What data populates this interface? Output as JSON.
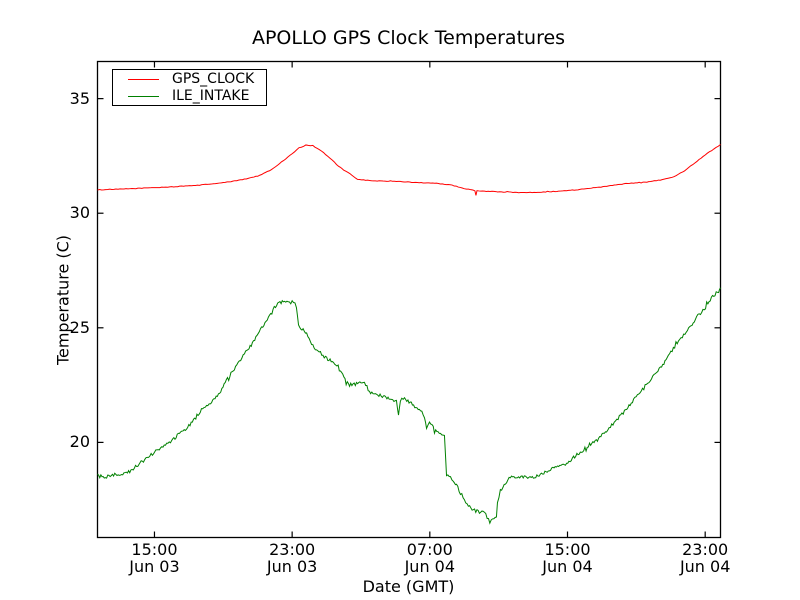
{
  "chart_data": {
    "type": "line",
    "title": "APOLLO GPS Clock Temperatures",
    "xlabel": "Date (GMT)",
    "ylabel": "Temperature (C)",
    "grid": false,
    "legend_position": "upper left",
    "background": "#ffffff",
    "frame_color": "#000000",
    "x_unit": "hours since Jun 03 00:00 GMT",
    "x_range": [
      11.69,
      47.89
    ],
    "y_range": [
      15.85,
      36.62
    ],
    "x_ticks": [
      {
        "hour": 15,
        "time": "15:00",
        "date": "Jun 03"
      },
      {
        "hour": 23,
        "time": "23:00",
        "date": "Jun 03"
      },
      {
        "hour": 31,
        "time": "07:00",
        "date": "Jun 04"
      },
      {
        "hour": 39,
        "time": "15:00",
        "date": "Jun 04"
      },
      {
        "hour": 47,
        "time": "23:00",
        "date": "Jun 04"
      }
    ],
    "y_ticks": [
      {
        "value": 20,
        "label": "20"
      },
      {
        "value": 25,
        "label": "25"
      },
      {
        "value": 30,
        "label": "30"
      },
      {
        "value": 35,
        "label": "35"
      }
    ],
    "series": [
      {
        "name": "GPS_CLOCK",
        "color": "#ff0000",
        "noise": 0.012,
        "points": [
          [
            11.69,
            31.02
          ],
          [
            13.0,
            31.05
          ],
          [
            14.5,
            31.1
          ],
          [
            16.0,
            31.15
          ],
          [
            17.5,
            31.22
          ],
          [
            19.0,
            31.33
          ],
          [
            20.0,
            31.45
          ],
          [
            21.0,
            31.62
          ],
          [
            21.8,
            31.9
          ],
          [
            22.5,
            32.3
          ],
          [
            23.0,
            32.6
          ],
          [
            23.4,
            32.85
          ],
          [
            23.8,
            32.97
          ],
          [
            24.2,
            32.95
          ],
          [
            24.7,
            32.72
          ],
          [
            25.2,
            32.4
          ],
          [
            25.7,
            32.05
          ],
          [
            26.0,
            31.88
          ],
          [
            26.35,
            31.72
          ],
          [
            26.8,
            31.48
          ],
          [
            27.5,
            31.42
          ],
          [
            28.5,
            31.4
          ],
          [
            29.5,
            31.37
          ],
          [
            30.5,
            31.33
          ],
          [
            31.5,
            31.3
          ],
          [
            32.3,
            31.22
          ],
          [
            33.0,
            31.08
          ],
          [
            33.5,
            31.0
          ],
          [
            33.62,
            30.98
          ],
          [
            33.68,
            30.78
          ],
          [
            33.74,
            30.98
          ],
          [
            34.5,
            30.95
          ],
          [
            35.5,
            30.92
          ],
          [
            36.5,
            30.9
          ],
          [
            37.5,
            30.92
          ],
          [
            38.5,
            30.96
          ],
          [
            39.5,
            31.02
          ],
          [
            40.5,
            31.1
          ],
          [
            41.5,
            31.2
          ],
          [
            42.5,
            31.3
          ],
          [
            43.5,
            31.36
          ],
          [
            44.5,
            31.46
          ],
          [
            45.2,
            31.6
          ],
          [
            45.8,
            31.85
          ],
          [
            46.4,
            32.2
          ],
          [
            47.0,
            32.55
          ],
          [
            47.5,
            32.8
          ],
          [
            47.89,
            33.0
          ]
        ]
      },
      {
        "name": "ILE_INTAKE",
        "color": "#008000",
        "noise": 0.075,
        "points": [
          [
            11.69,
            18.55
          ],
          [
            12.15,
            18.45
          ],
          [
            12.56,
            18.6
          ],
          [
            13.02,
            18.6
          ],
          [
            13.43,
            18.65
          ],
          [
            13.9,
            18.95
          ],
          [
            14.36,
            19.2
          ],
          [
            14.88,
            19.5
          ],
          [
            15.35,
            19.75
          ],
          [
            15.93,
            20.0
          ],
          [
            16.39,
            20.35
          ],
          [
            16.86,
            20.6
          ],
          [
            17.27,
            21.0
          ],
          [
            17.73,
            21.4
          ],
          [
            18.25,
            21.75
          ],
          [
            18.72,
            22.1
          ],
          [
            19.18,
            22.7
          ],
          [
            19.71,
            23.3
          ],
          [
            20.23,
            23.85
          ],
          [
            20.69,
            24.3
          ],
          [
            21.16,
            24.9
          ],
          [
            21.62,
            25.4
          ],
          [
            22.03,
            25.95
          ],
          [
            22.49,
            26.2
          ],
          [
            22.84,
            26.1
          ],
          [
            23.08,
            26.15
          ],
          [
            23.25,
            25.9
          ],
          [
            23.37,
            25.1
          ],
          [
            23.77,
            24.8
          ],
          [
            24.35,
            24.1
          ],
          [
            24.94,
            23.7
          ],
          [
            25.4,
            23.5
          ],
          [
            25.81,
            23.1
          ],
          [
            26.27,
            22.5
          ],
          [
            26.74,
            22.55
          ],
          [
            27.2,
            22.65
          ],
          [
            27.49,
            22.2
          ],
          [
            27.84,
            22.1
          ],
          [
            28.31,
            22.0
          ],
          [
            28.77,
            21.9
          ],
          [
            29.06,
            21.8
          ],
          [
            29.18,
            21.25
          ],
          [
            29.29,
            21.85
          ],
          [
            29.53,
            21.9
          ],
          [
            29.99,
            21.65
          ],
          [
            30.46,
            21.4
          ],
          [
            30.69,
            21.1
          ],
          [
            30.81,
            20.65
          ],
          [
            30.98,
            20.9
          ],
          [
            31.27,
            20.55
          ],
          [
            31.62,
            20.4
          ],
          [
            31.85,
            20.25
          ],
          [
            31.97,
            18.6
          ],
          [
            32.2,
            18.45
          ],
          [
            32.37,
            18.3
          ],
          [
            32.55,
            18.15
          ],
          [
            32.78,
            17.8
          ],
          [
            33.01,
            17.5
          ],
          [
            33.24,
            17.25
          ],
          [
            33.53,
            17.05
          ],
          [
            33.88,
            16.95
          ],
          [
            34.17,
            16.95
          ],
          [
            34.41,
            16.6
          ],
          [
            34.64,
            16.7
          ],
          [
            34.87,
            16.7
          ],
          [
            34.93,
            17.4
          ],
          [
            35.1,
            17.9
          ],
          [
            35.39,
            18.25
          ],
          [
            35.68,
            18.5
          ],
          [
            36.09,
            18.45
          ],
          [
            36.56,
            18.5
          ],
          [
            37.02,
            18.45
          ],
          [
            37.49,
            18.6
          ],
          [
            37.95,
            18.8
          ],
          [
            38.42,
            18.9
          ],
          [
            38.88,
            19.05
          ],
          [
            39.35,
            19.35
          ],
          [
            39.81,
            19.6
          ],
          [
            40.28,
            19.9
          ],
          [
            40.74,
            20.1
          ],
          [
            41.27,
            20.5
          ],
          [
            41.79,
            20.95
          ],
          [
            42.31,
            21.35
          ],
          [
            42.84,
            21.85
          ],
          [
            43.36,
            22.3
          ],
          [
            43.88,
            22.8
          ],
          [
            44.4,
            23.25
          ],
          [
            44.93,
            23.85
          ],
          [
            45.45,
            24.4
          ],
          [
            45.97,
            24.9
          ],
          [
            46.5,
            25.45
          ],
          [
            47.02,
            25.9
          ],
          [
            47.43,
            26.35
          ],
          [
            47.78,
            26.65
          ],
          [
            47.89,
            26.75
          ]
        ]
      }
    ]
  }
}
